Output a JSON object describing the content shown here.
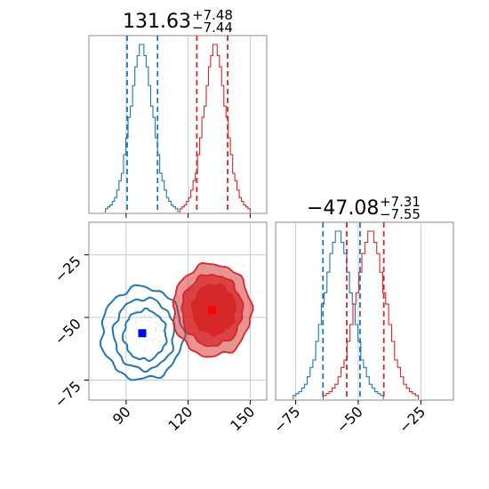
{
  "chart_data": [
    {
      "type": "histogram",
      "panel": "top-left",
      "title": {
        "median": "131.63",
        "plus": "+7.48",
        "minus": "−7.44"
      },
      "xlim": [
        72,
        158
      ],
      "xticks": [
        90,
        120,
        150
      ],
      "grid": true,
      "series": [
        {
          "color": "#1f77b4",
          "values": [
            2,
            3,
            4,
            6,
            8,
            12,
            17,
            21,
            31,
            40,
            51,
            57,
            68,
            78,
            84,
            90,
            90,
            84,
            78,
            68,
            57,
            51,
            40,
            31,
            21,
            17,
            12,
            8,
            6,
            4,
            3,
            2
          ],
          "x_range": [
            80,
            115
          ],
          "quantiles": [
            90.5,
            105.2
          ]
        },
        {
          "color": "#d62728",
          "values": [
            2,
            3,
            4,
            6,
            8,
            12,
            17,
            21,
            31,
            40,
            51,
            57,
            68,
            78,
            84,
            90,
            90,
            84,
            78,
            68,
            57,
            51,
            40,
            31,
            21,
            17,
            12,
            8,
            6,
            4,
            3,
            2
          ],
          "x_range": [
            116,
            150
          ],
          "quantiles": [
            124.2,
            139.1
          ]
        }
      ]
    },
    {
      "type": "contour",
      "panel": "bottom-left",
      "xlim": [
        72,
        158
      ],
      "ylim": [
        -83,
        -12
      ],
      "xticks": [
        90,
        120,
        150
      ],
      "xtick_labels": [
        "90",
        "120",
        "150"
      ],
      "yticks": [
        -25,
        -50,
        -75
      ],
      "ytick_labels": [
        "−25",
        "−50",
        "−75"
      ],
      "grid": true,
      "series": [
        {
          "color": "#1f77b4",
          "center": [
            97.8,
            -56.3
          ],
          "filled": false,
          "marker": "#0000ff"
        },
        {
          "color": "#d62728",
          "center": [
            131.6,
            -47.1
          ],
          "filled": true,
          "marker": "#ff0000"
        }
      ]
    },
    {
      "type": "histogram",
      "panel": "bottom-right",
      "title": {
        "median": "−47.08",
        "plus": "+7.31",
        "minus": "−7.55"
      },
      "xlim": [
        -83,
        -12
      ],
      "xticks": [
        -75,
        -50,
        -25
      ],
      "xtick_labels": [
        "−75",
        "−50",
        "−25"
      ],
      "grid": true,
      "series": [
        {
          "color": "#1f77b4",
          "values": [
            2,
            3,
            4,
            6,
            8,
            12,
            17,
            21,
            31,
            40,
            51,
            57,
            68,
            78,
            84,
            90,
            90,
            84,
            78,
            68,
            57,
            51,
            40,
            31,
            21,
            17,
            12,
            8,
            6,
            4,
            3,
            2
          ],
          "x_range": [
            -76,
            -40
          ],
          "quantiles": [
            -64.1,
            -49.3
          ]
        },
        {
          "color": "#d62728",
          "values": [
            2,
            3,
            4,
            6,
            8,
            12,
            17,
            21,
            31,
            40,
            51,
            57,
            68,
            78,
            84,
            90,
            90,
            84,
            78,
            68,
            57,
            51,
            40,
            31,
            21,
            17,
            12,
            8,
            6,
            4,
            3,
            2
          ],
          "x_range": [
            -64,
            -26
          ],
          "quantiles": [
            -54.6,
            -39.8
          ]
        }
      ]
    }
  ]
}
